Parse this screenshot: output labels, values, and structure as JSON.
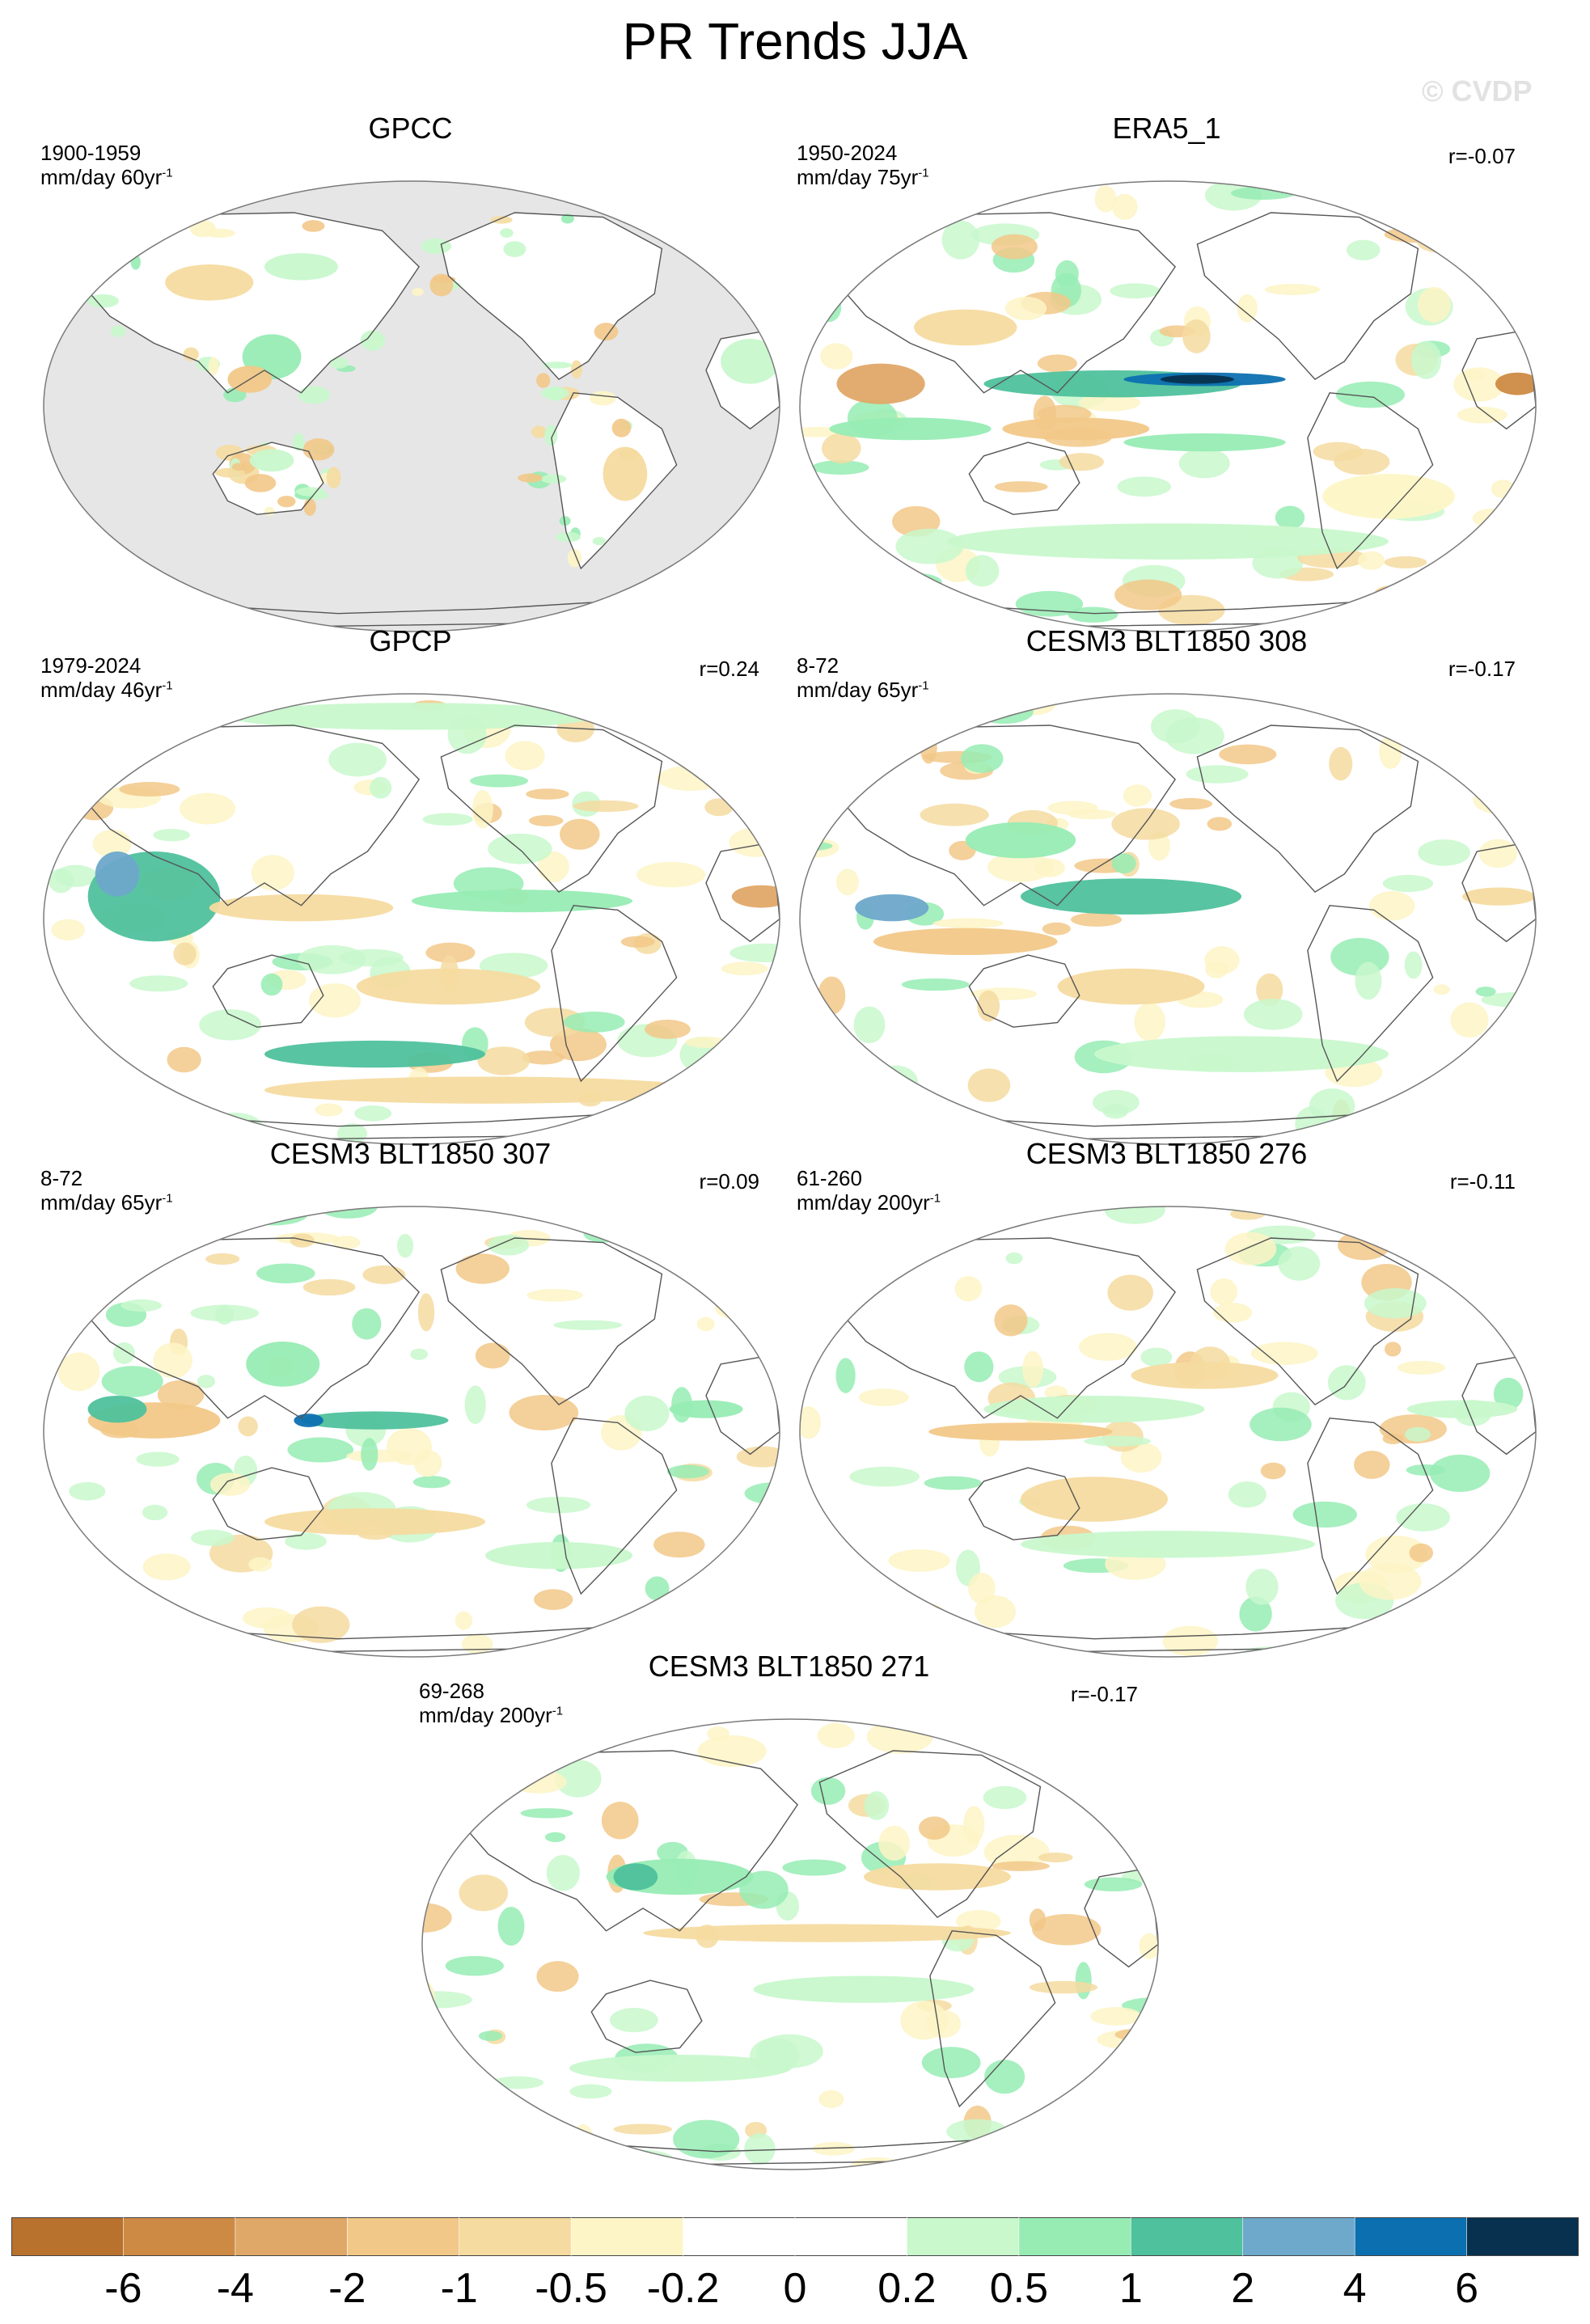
{
  "title": "PR Trends JJA",
  "watermark": "© CVDP",
  "colors": {
    "ocean_mask": "#e6e6e6",
    "coastline": "#555555",
    "levels": [
      "#b8722e",
      "#cd8a45",
      "#e0a868",
      "#f2c888",
      "#f5dba0",
      "#fdf5c6",
      "#ffffff",
      "#ffffff",
      "#c8f8cc",
      "#97ecb4",
      "#4fc19c",
      "#6ea8cb",
      "#0c70b0",
      "#08304f"
    ]
  },
  "colorbar": {
    "labels": [
      "-6",
      "-4",
      "-2",
      "-1",
      "-0.5",
      "-0.2",
      "0",
      "0.2",
      "0.5",
      "1",
      "2",
      "4",
      "6"
    ]
  },
  "panels": [
    {
      "title": "GPCC",
      "period": "1900-1959",
      "units": "mm/day 60yr",
      "units_sup": "-1",
      "corr": "",
      "mask_ocean": true
    },
    {
      "title": "ERA5_1",
      "period": "1950-2024",
      "units": "mm/day 75yr",
      "units_sup": "-1",
      "corr": "r=-0.07",
      "mask_ocean": false
    },
    {
      "title": "GPCP",
      "period": "1979-2024",
      "units": "mm/day 46yr",
      "units_sup": "-1",
      "corr": "r=0.24",
      "mask_ocean": false
    },
    {
      "title": "CESM3 BLT1850 308",
      "period": "8-72",
      "units": "mm/day 65yr",
      "units_sup": "-1",
      "corr": "r=-0.17",
      "mask_ocean": false
    },
    {
      "title": "CESM3 BLT1850 307",
      "period": "8-72",
      "units": "mm/day 65yr",
      "units_sup": "-1",
      "corr": "r=0.09",
      "mask_ocean": false
    },
    {
      "title": "CESM3 BLT1850 276",
      "period": "61-260",
      "units": "mm/day 200yr",
      "units_sup": "-1",
      "corr": "r=-0.11",
      "mask_ocean": false
    },
    {
      "title": "CESM3 BLT1850 271",
      "period": "69-268",
      "units": "mm/day 200yr",
      "units_sup": "-1",
      "corr": "r=-0.17",
      "mask_ocean": false
    }
  ]
}
